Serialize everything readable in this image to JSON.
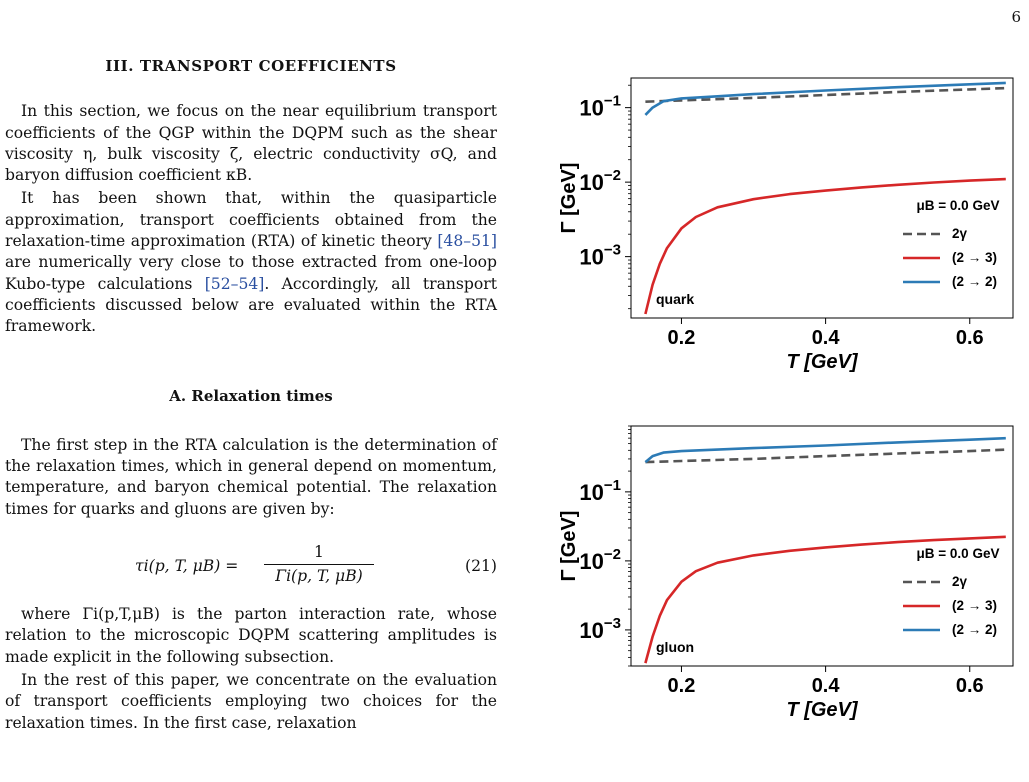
{
  "page_number": "6",
  "section": {
    "title": "III. TRANSPORT COEFFICIENTS"
  },
  "paragraphs": {
    "p1": "In this section, we focus on the near equilibrium transport coefficients of the QGP within the DQPM such as the shear viscosity η, bulk viscosity ζ, electric conductivity σQ, and baryon diffusion coefficient κB.",
    "p2_a": "It has been shown that, within the quasiparticle approximation, transport coefficients obtained from the relaxation-time approximation (RTA) of kinetic theory ",
    "p2_cite1": "[48–51]",
    "p2_b": " are numerically very close to those extracted from one-loop Kubo-type calculations ",
    "p2_cite2": "[52–54]",
    "p2_c": ". Accordingly, all transport coefficients discussed below are evaluated within the RTA framework.",
    "p3": "The first step in the RTA calculation is the determination of the relaxation times, which in general depend on momentum, temperature, and baryon chemical potential. The relaxation times for quarks and gluons are given by:",
    "p4": "where Γi(p,T,μB) is the parton interaction rate, whose relation to the microscopic DQPM scattering amplitudes is made explicit in the following subsection.",
    "p5": "In the rest of this paper, we concentrate on the evaluation of transport coefficients employing two choices for the relaxation times. In the first case, relaxation"
  },
  "subsection": {
    "title": "A. Relaxation times"
  },
  "equation": {
    "lhs": "τi(p, T, μB) =",
    "numerator": "1",
    "denominator": "Γi(p, T, μB)",
    "number": "(21)"
  },
  "chart_data": [
    {
      "type": "line",
      "panel_label": "quark",
      "xlabel": "T [GeV]",
      "ylabel": "Γ [GeV]",
      "y_scale": "log",
      "xlim": [
        0.13,
        0.66
      ],
      "ylim": [
        0.00015,
        0.25
      ],
      "x_ticks": [
        0.2,
        0.4,
        0.6
      ],
      "x_tick_labels": [
        "0.2",
        "0.4",
        "0.6"
      ],
      "y_ticks": [
        0.001,
        0.01,
        0.1
      ],
      "y_tick_labels": [
        {
          "base": "10",
          "exp": "−3"
        },
        {
          "base": "10",
          "exp": "−2"
        },
        {
          "base": "10",
          "exp": "−1"
        }
      ],
      "legend_title": "μB = 0.0 GeV",
      "legend_position": "right",
      "series": [
        {
          "name": "2γ",
          "color": "#555555",
          "dash": true,
          "x": [
            0.15,
            0.2,
            0.3,
            0.4,
            0.5,
            0.6,
            0.65
          ],
          "y": [
            0.12,
            0.125,
            0.135,
            0.148,
            0.162,
            0.176,
            0.183
          ]
        },
        {
          "name": "(2 → 3)",
          "color": "#d62728",
          "dash": false,
          "x": [
            0.15,
            0.16,
            0.17,
            0.18,
            0.2,
            0.22,
            0.25,
            0.3,
            0.35,
            0.4,
            0.45,
            0.5,
            0.55,
            0.6,
            0.65
          ],
          "y": [
            0.00017,
            0.00042,
            0.0008,
            0.0013,
            0.0024,
            0.0034,
            0.0046,
            0.0059,
            0.0069,
            0.0077,
            0.0085,
            0.0092,
            0.0099,
            0.0105,
            0.011
          ]
        },
        {
          "name": "(2 → 2)",
          "color": "#2c7bb6",
          "dash": false,
          "x": [
            0.15,
            0.16,
            0.175,
            0.2,
            0.25,
            0.3,
            0.4,
            0.5,
            0.6,
            0.65
          ],
          "y": [
            0.08,
            0.1,
            0.122,
            0.133,
            0.142,
            0.152,
            0.17,
            0.188,
            0.206,
            0.215
          ]
        }
      ]
    },
    {
      "type": "line",
      "panel_label": "gluon",
      "xlabel": "T [GeV]",
      "ylabel": "Γ [GeV]",
      "y_scale": "log",
      "xlim": [
        0.13,
        0.66
      ],
      "ylim": [
        0.0003,
        0.9
      ],
      "x_ticks": [
        0.2,
        0.4,
        0.6
      ],
      "x_tick_labels": [
        "0.2",
        "0.4",
        "0.6"
      ],
      "y_ticks": [
        0.001,
        0.01,
        0.1
      ],
      "y_tick_labels": [
        {
          "base": "10",
          "exp": "−3"
        },
        {
          "base": "10",
          "exp": "−2"
        },
        {
          "base": "10",
          "exp": "−1"
        }
      ],
      "legend_title": "μB = 0.0 GeV",
      "legend_position": "right",
      "series": [
        {
          "name": "2γ",
          "color": "#555555",
          "dash": true,
          "x": [
            0.15,
            0.2,
            0.3,
            0.4,
            0.5,
            0.6,
            0.65
          ],
          "y": [
            0.27,
            0.28,
            0.3,
            0.33,
            0.36,
            0.39,
            0.41
          ]
        },
        {
          "name": "(2 → 3)",
          "color": "#d62728",
          "dash": false,
          "x": [
            0.15,
            0.16,
            0.17,
            0.18,
            0.2,
            0.22,
            0.25,
            0.3,
            0.35,
            0.4,
            0.45,
            0.5,
            0.55,
            0.6,
            0.65
          ],
          "y": [
            0.00033,
            0.0008,
            0.0016,
            0.0027,
            0.005,
            0.0071,
            0.0094,
            0.012,
            0.014,
            0.0157,
            0.0172,
            0.0187,
            0.02,
            0.0212,
            0.0223
          ]
        },
        {
          "name": "(2 → 2)",
          "color": "#2c7bb6",
          "dash": false,
          "x": [
            0.15,
            0.16,
            0.175,
            0.2,
            0.25,
            0.3,
            0.4,
            0.5,
            0.6,
            0.65
          ],
          "y": [
            0.27,
            0.33,
            0.37,
            0.39,
            0.41,
            0.43,
            0.47,
            0.52,
            0.57,
            0.6
          ]
        }
      ]
    }
  ]
}
